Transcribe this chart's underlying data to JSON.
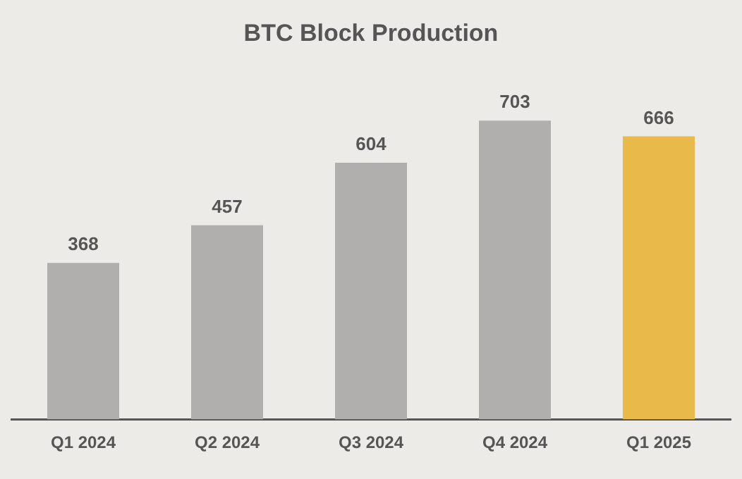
{
  "chart_data": {
    "type": "bar",
    "title": "BTC Block Production",
    "categories": [
      "Q1 2024",
      "Q2 2024",
      "Q3 2024",
      "Q4 2024",
      "Q1 2025"
    ],
    "values": [
      368,
      457,
      604,
      703,
      666
    ],
    "colors": [
      "#b0afad",
      "#b0afad",
      "#b0afad",
      "#b0afad",
      "#e9b94a"
    ],
    "data_labels": true,
    "grid": false,
    "legend": false
  }
}
